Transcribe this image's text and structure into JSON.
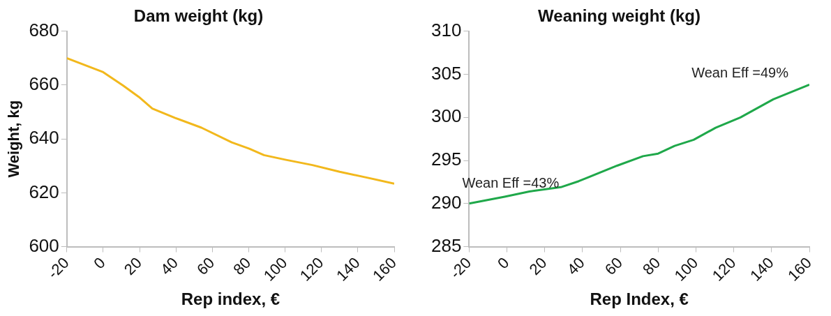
{
  "chart_data": [
    {
      "type": "line",
      "title": "Dam weight (kg)",
      "xlabel": "Rep index, €",
      "ylabel": "Weight, kg",
      "x": [
        -20,
        0,
        11,
        19.6,
        27,
        39.6,
        54,
        70.7,
        80.3,
        88.4,
        100,
        115,
        130,
        144.6,
        160
      ],
      "series": [
        {
          "color": "#f2b81c",
          "values": [
            670,
            664.8,
            659.8,
            655.6,
            651.3,
            647.8,
            644.2,
            638.7,
            636.4,
            634,
            632.3,
            630.3,
            627.8,
            625.7,
            623.4
          ]
        }
      ],
      "xlim": [
        -20,
        160
      ],
      "xticks": [
        -20,
        0,
        20,
        40,
        60,
        80,
        100,
        120,
        140,
        160
      ],
      "ylim": [
        600,
        680
      ],
      "yticks": [
        600,
        620,
        640,
        660,
        680
      ],
      "grid": false
    },
    {
      "type": "line",
      "title": "Weaning weight (kg)",
      "xlabel": "Rep Index, €",
      "x": [
        -20,
        -1.2,
        11.9,
        28.5,
        38,
        58.3,
        72,
        80,
        88.7,
        98.8,
        110.4,
        123.5,
        140.9,
        160
      ],
      "series": [
        {
          "color": "#1fa84a",
          "values": [
            290,
            290.8,
            291.4,
            291.9,
            292.6,
            294.4,
            295.5,
            295.8,
            296.7,
            297.4,
            298.8,
            300,
            302.1,
            303.8
          ]
        }
      ],
      "xlim": [
        -20,
        160
      ],
      "xticks": [
        -20,
        0,
        20,
        40,
        60,
        80,
        100,
        120,
        140,
        160
      ],
      "ylim": [
        285,
        310
      ],
      "yticks": [
        285,
        290,
        295,
        300,
        305,
        310
      ],
      "grid": false,
      "annotations": [
        {
          "text": "Wean Eff =43%",
          "x": -20,
          "y": 290
        },
        {
          "text": "Wean Eff =49%",
          "x": 160,
          "y": 303.8
        }
      ]
    }
  ]
}
